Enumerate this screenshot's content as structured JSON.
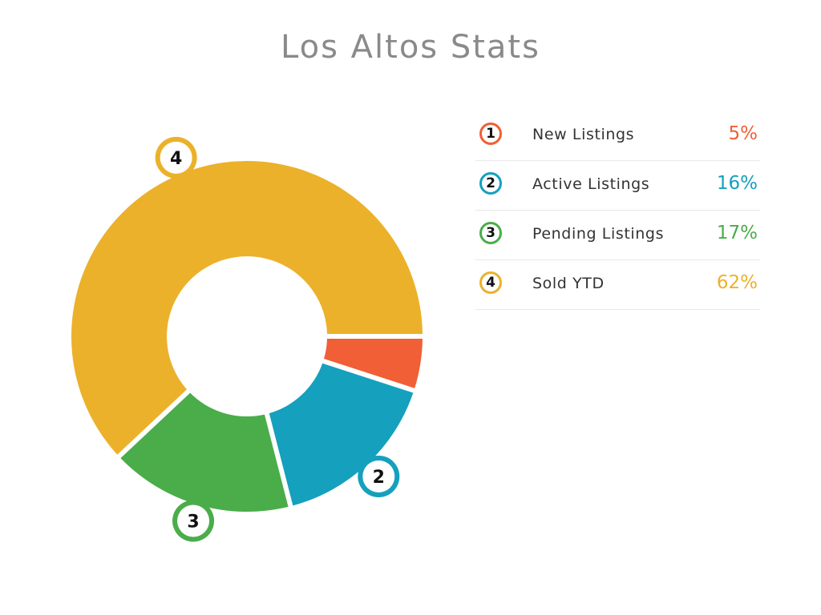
{
  "chart_data": {
    "type": "pie",
    "title": "Los Altos Stats",
    "categories": [
      "New Listings",
      "Active Listings",
      "Pending Listings",
      "Sold YTD"
    ],
    "series": [
      {
        "values": [
          5,
          16,
          17,
          62
        ]
      }
    ],
    "value_labels": [
      "5%",
      "16%",
      "17%",
      "62%"
    ],
    "slice_numbers": [
      "1",
      "2",
      "3",
      "4"
    ],
    "colors": [
      "#f05f35",
      "#15a0bd",
      "#4aad4a",
      "#ecb12a"
    ],
    "donut": true,
    "legend_position": "right"
  }
}
